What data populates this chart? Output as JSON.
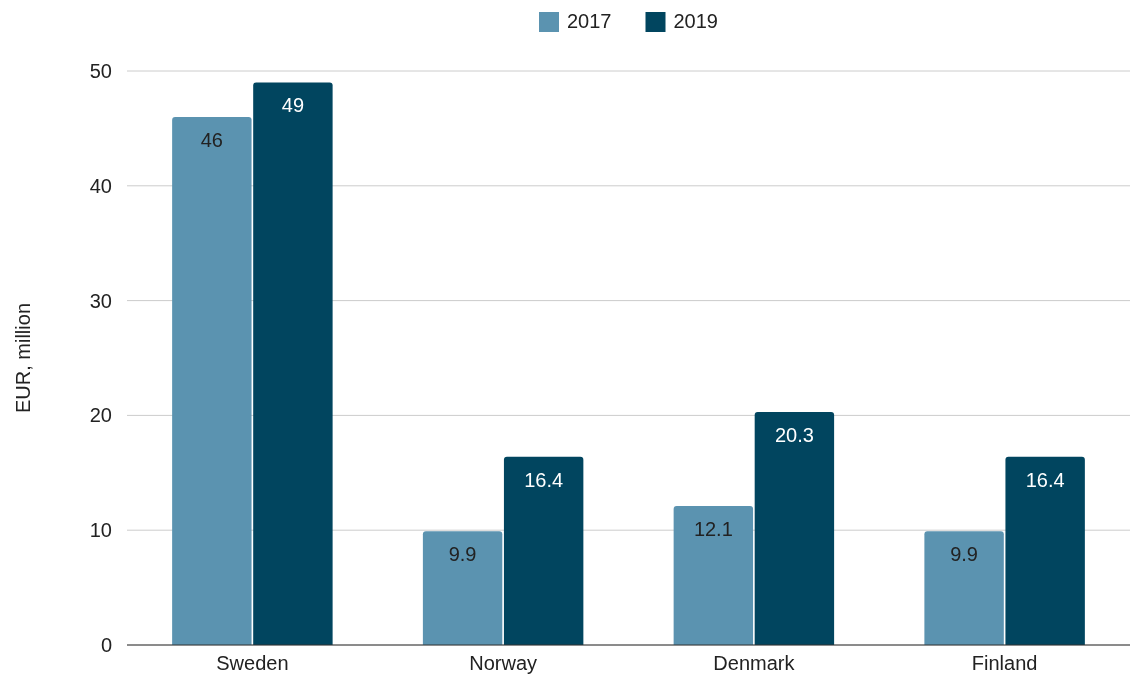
{
  "chart_data": {
    "type": "bar",
    "ylabel": "EUR, million",
    "categories": [
      "Sweden",
      "Norway",
      "Denmark",
      "Finland"
    ],
    "series": [
      {
        "name": "2017",
        "color": "#5b93b0",
        "values": [
          46,
          9.9,
          12.1,
          9.9
        ]
      },
      {
        "name": "2019",
        "color": "#01455f",
        "values": [
          49,
          16.4,
          20.3,
          16.4
        ]
      }
    ],
    "ylim": [
      0,
      50
    ],
    "yticks": [
      0,
      10,
      20,
      30,
      40,
      50
    ],
    "grid": "y",
    "legend": "top",
    "data_labels": true
  }
}
